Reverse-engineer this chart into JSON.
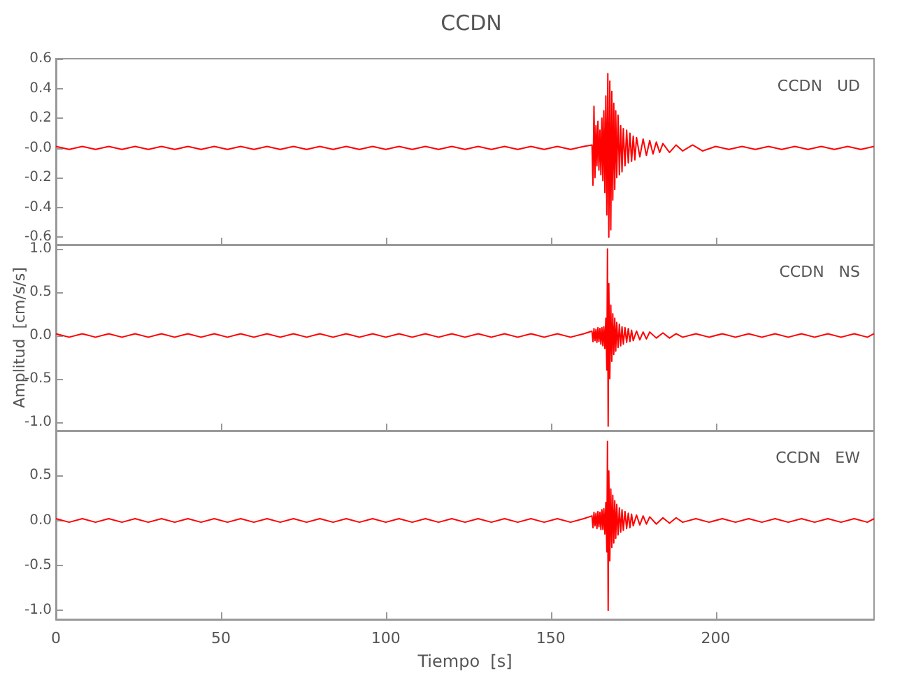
{
  "chart_data": [
    {
      "type": "line",
      "title": "CCDN",
      "annotations": [
        "CCDN   UD"
      ],
      "xlim": [
        0,
        248
      ],
      "xticks": [
        0,
        50,
        100,
        150,
        200
      ],
      "ylim": [
        -0.65,
        0.6
      ],
      "yticks": [
        {
          "value": -0.6,
          "label": "-0.6"
        },
        {
          "value": -0.4,
          "label": "-0.4"
        },
        {
          "value": -0.2,
          "label": "-0.2"
        },
        {
          "value": 0,
          "label": "-0.0"
        },
        {
          "value": 0.2,
          "label": "0.2"
        },
        {
          "value": 0.4,
          "label": "0.4"
        },
        {
          "value": 0.6,
          "label": "0.6"
        }
      ],
      "tick_labels": "y",
      "grid": false,
      "marker": "none",
      "series": [
        {
          "color": "#ff0000",
          "x": [
            0,
            4,
            8,
            12,
            16,
            20,
            24,
            28,
            32,
            36,
            40,
            44,
            48,
            52,
            56,
            60,
            64,
            68,
            72,
            76,
            80,
            84,
            88,
            92,
            96,
            100,
            104,
            108,
            112,
            116,
            120,
            124,
            128,
            132,
            136,
            140,
            144,
            148,
            152,
            156,
            160,
            162.5,
            162.8,
            163.1,
            163.4,
            163.7,
            164,
            164.3,
            164.6,
            164.9,
            165.2,
            165.5,
            165.8,
            166.1,
            166.4,
            166.7,
            167,
            167.3,
            167.6,
            167.9,
            168.2,
            168.5,
            168.8,
            169.1,
            169.4,
            169.7,
            170,
            170.4,
            170.8,
            171.2,
            171.6,
            172,
            172.5,
            173,
            173.5,
            174,
            174.5,
            175,
            175.5,
            176,
            177,
            178,
            179,
            180,
            181,
            182,
            183,
            184,
            186,
            188,
            190,
            193,
            196,
            200,
            204,
            208,
            212,
            216,
            220,
            224,
            228,
            232,
            236,
            240,
            244,
            248
          ],
          "values": [
            0.01,
            -0.01,
            0.01,
            -0.01,
            0.01,
            -0.01,
            0.01,
            -0.01,
            0.01,
            -0.01,
            0.01,
            -0.01,
            0.01,
            -0.01,
            0.01,
            -0.01,
            0.01,
            -0.01,
            0.01,
            -0.01,
            0.01,
            -0.01,
            0.01,
            -0.01,
            0.01,
            -0.01,
            0.01,
            -0.01,
            0.01,
            -0.01,
            0.01,
            -0.01,
            0.01,
            -0.01,
            0.01,
            -0.01,
            0.01,
            -0.01,
            0.01,
            -0.01,
            0.01,
            0.02,
            -0.25,
            0.28,
            -0.2,
            0.15,
            -0.12,
            0.18,
            -0.15,
            0.12,
            -0.18,
            0.2,
            -0.22,
            0.25,
            -0.3,
            0.35,
            -0.45,
            0.5,
            -0.6,
            0.45,
            -0.55,
            0.38,
            -0.35,
            0.3,
            -0.28,
            0.25,
            -0.2,
            0.22,
            -0.18,
            0.15,
            -0.16,
            0.13,
            -0.12,
            0.12,
            -0.1,
            0.1,
            -0.09,
            0.08,
            -0.08,
            0.07,
            -0.06,
            0.06,
            -0.05,
            0.05,
            -0.04,
            0.04,
            -0.03,
            0.03,
            -0.03,
            0.02,
            -0.02,
            0.02,
            -0.02,
            0.01,
            -0.01,
            0.01,
            -0.01,
            0.01,
            -0.01,
            0.01,
            -0.01,
            0.01,
            -0.01,
            0.01,
            -0.01,
            0.01
          ]
        }
      ]
    },
    {
      "type": "line",
      "ylabel": "Amplitud  [cm/s/s]",
      "annotations": [
        "CCDN   NS"
      ],
      "xlim": [
        0,
        248
      ],
      "xticks": [
        0,
        50,
        100,
        150,
        200
      ],
      "ylim": [
        -1.1,
        1.05
      ],
      "yticks": [
        {
          "value": -1,
          "label": "-1.0"
        },
        {
          "value": -0.5,
          "label": "-0.5"
        },
        {
          "value": 0,
          "label": "0.0"
        },
        {
          "value": 0.5,
          "label": "0.5"
        },
        {
          "value": 1,
          "label": "1.0"
        }
      ],
      "tick_labels": "y",
      "grid": false,
      "marker": "none",
      "series": [
        {
          "color": "#ff0000",
          "x": [
            0,
            4,
            8,
            12,
            16,
            20,
            24,
            28,
            32,
            36,
            40,
            44,
            48,
            52,
            56,
            60,
            64,
            68,
            72,
            76,
            80,
            84,
            88,
            92,
            96,
            100,
            104,
            108,
            112,
            116,
            120,
            124,
            128,
            132,
            136,
            140,
            144,
            148,
            152,
            156,
            160,
            162.5,
            162.8,
            163.1,
            163.4,
            163.7,
            164,
            164.3,
            164.6,
            164.9,
            165.2,
            165.5,
            165.8,
            166.1,
            166.4,
            166.7,
            167,
            167.2,
            167.4,
            167.6,
            167.9,
            168.2,
            168.5,
            168.8,
            169.1,
            169.4,
            169.7,
            170,
            170.4,
            170.8,
            171.2,
            171.6,
            172,
            172.5,
            173,
            173.5,
            174,
            174.5,
            175,
            176,
            177,
            178,
            179,
            180,
            182,
            184,
            186,
            188,
            190,
            194,
            198,
            202,
            206,
            210,
            214,
            218,
            222,
            226,
            230,
            234,
            238,
            242,
            246,
            248
          ],
          "values": [
            0.02,
            -0.02,
            0.02,
            -0.02,
            0.02,
            -0.02,
            0.02,
            -0.02,
            0.02,
            -0.02,
            0.02,
            -0.02,
            0.02,
            -0.02,
            0.02,
            -0.02,
            0.02,
            -0.02,
            0.02,
            -0.02,
            0.02,
            -0.02,
            0.02,
            -0.02,
            0.02,
            -0.02,
            0.02,
            -0.02,
            0.02,
            -0.02,
            0.02,
            -0.02,
            0.02,
            -0.02,
            0.02,
            -0.02,
            0.02,
            -0.02,
            0.02,
            -0.02,
            0.02,
            0.05,
            -0.07,
            0.08,
            -0.06,
            0.07,
            -0.08,
            0.09,
            -0.07,
            0.08,
            -0.1,
            0.09,
            -0.12,
            0.1,
            -0.15,
            0.2,
            -0.4,
            1.0,
            -1.05,
            0.6,
            -0.5,
            0.35,
            -0.3,
            0.25,
            -0.22,
            0.2,
            -0.18,
            0.15,
            -0.14,
            0.13,
            -0.12,
            0.1,
            -0.1,
            0.09,
            -0.08,
            0.08,
            -0.07,
            0.06,
            -0.06,
            0.05,
            -0.05,
            0.04,
            -0.04,
            0.04,
            -0.03,
            0.03,
            -0.03,
            0.02,
            -0.02,
            0.02,
            -0.02,
            0.02,
            -0.02,
            0.02,
            -0.02,
            0.02,
            -0.02,
            0.02,
            -0.02,
            0.02,
            -0.02,
            0.02,
            -0.02,
            0.02
          ]
        }
      ]
    },
    {
      "type": "line",
      "xlabel": "Tiempo  [s]",
      "annotations": [
        "CCDN   EW"
      ],
      "xlim": [
        0,
        248
      ],
      "xticks": [
        0,
        50,
        100,
        150,
        200
      ],
      "ylim": [
        -1.1,
        1.0
      ],
      "yticks": [
        {
          "value": -1,
          "label": "-1.0"
        },
        {
          "value": -0.5,
          "label": "-0.5"
        },
        {
          "value": 0,
          "label": "0.0"
        },
        {
          "value": 0.5,
          "label": "0.5"
        }
      ],
      "grid": false,
      "marker": "none",
      "series": [
        {
          "color": "#ff0000",
          "x": [
            0,
            4,
            8,
            12,
            16,
            20,
            24,
            28,
            32,
            36,
            40,
            44,
            48,
            52,
            56,
            60,
            64,
            68,
            72,
            76,
            80,
            84,
            88,
            92,
            96,
            100,
            104,
            108,
            112,
            116,
            120,
            124,
            128,
            132,
            136,
            140,
            144,
            148,
            152,
            156,
            160,
            162.5,
            162.8,
            163.1,
            163.4,
            163.7,
            164,
            164.3,
            164.6,
            164.9,
            165.2,
            165.5,
            165.8,
            166.1,
            166.4,
            166.7,
            167,
            167.2,
            167.4,
            167.6,
            167.9,
            168.2,
            168.5,
            168.8,
            169.1,
            169.4,
            169.7,
            170,
            170.4,
            170.8,
            171.2,
            171.6,
            172,
            172.5,
            173,
            173.5,
            174,
            174.5,
            175,
            176,
            177,
            178,
            179,
            180,
            182,
            184,
            186,
            188,
            190,
            194,
            198,
            202,
            206,
            210,
            214,
            218,
            222,
            226,
            230,
            234,
            238,
            242,
            246,
            248
          ],
          "values": [
            0.02,
            -0.02,
            0.02,
            -0.02,
            0.02,
            -0.02,
            0.02,
            -0.02,
            0.02,
            -0.02,
            0.02,
            -0.02,
            0.02,
            -0.02,
            0.02,
            -0.02,
            0.02,
            -0.02,
            0.02,
            -0.02,
            0.02,
            -0.02,
            0.02,
            -0.02,
            0.02,
            -0.02,
            0.02,
            -0.02,
            0.02,
            -0.02,
            0.02,
            -0.02,
            0.02,
            -0.02,
            0.02,
            -0.02,
            0.02,
            -0.02,
            0.02,
            -0.02,
            0.02,
            0.05,
            -0.08,
            0.09,
            -0.06,
            0.08,
            -0.09,
            0.1,
            -0.07,
            0.09,
            -0.1,
            0.12,
            -0.1,
            0.13,
            -0.15,
            0.2,
            -0.35,
            0.88,
            -1.0,
            0.55,
            -0.45,
            0.35,
            -0.3,
            0.28,
            -0.25,
            0.22,
            -0.2,
            0.18,
            -0.16,
            0.14,
            -0.13,
            0.12,
            -0.11,
            0.1,
            -0.09,
            0.08,
            -0.08,
            0.07,
            -0.06,
            0.06,
            -0.05,
            0.05,
            -0.04,
            0.04,
            -0.04,
            0.03,
            -0.03,
            0.03,
            -0.02,
            0.02,
            -0.02,
            0.02,
            -0.02,
            0.02,
            -0.02,
            0.02,
            -0.02,
            0.02,
            -0.02,
            0.02,
            -0.02,
            0.02,
            -0.02,
            0.02
          ]
        }
      ]
    }
  ]
}
